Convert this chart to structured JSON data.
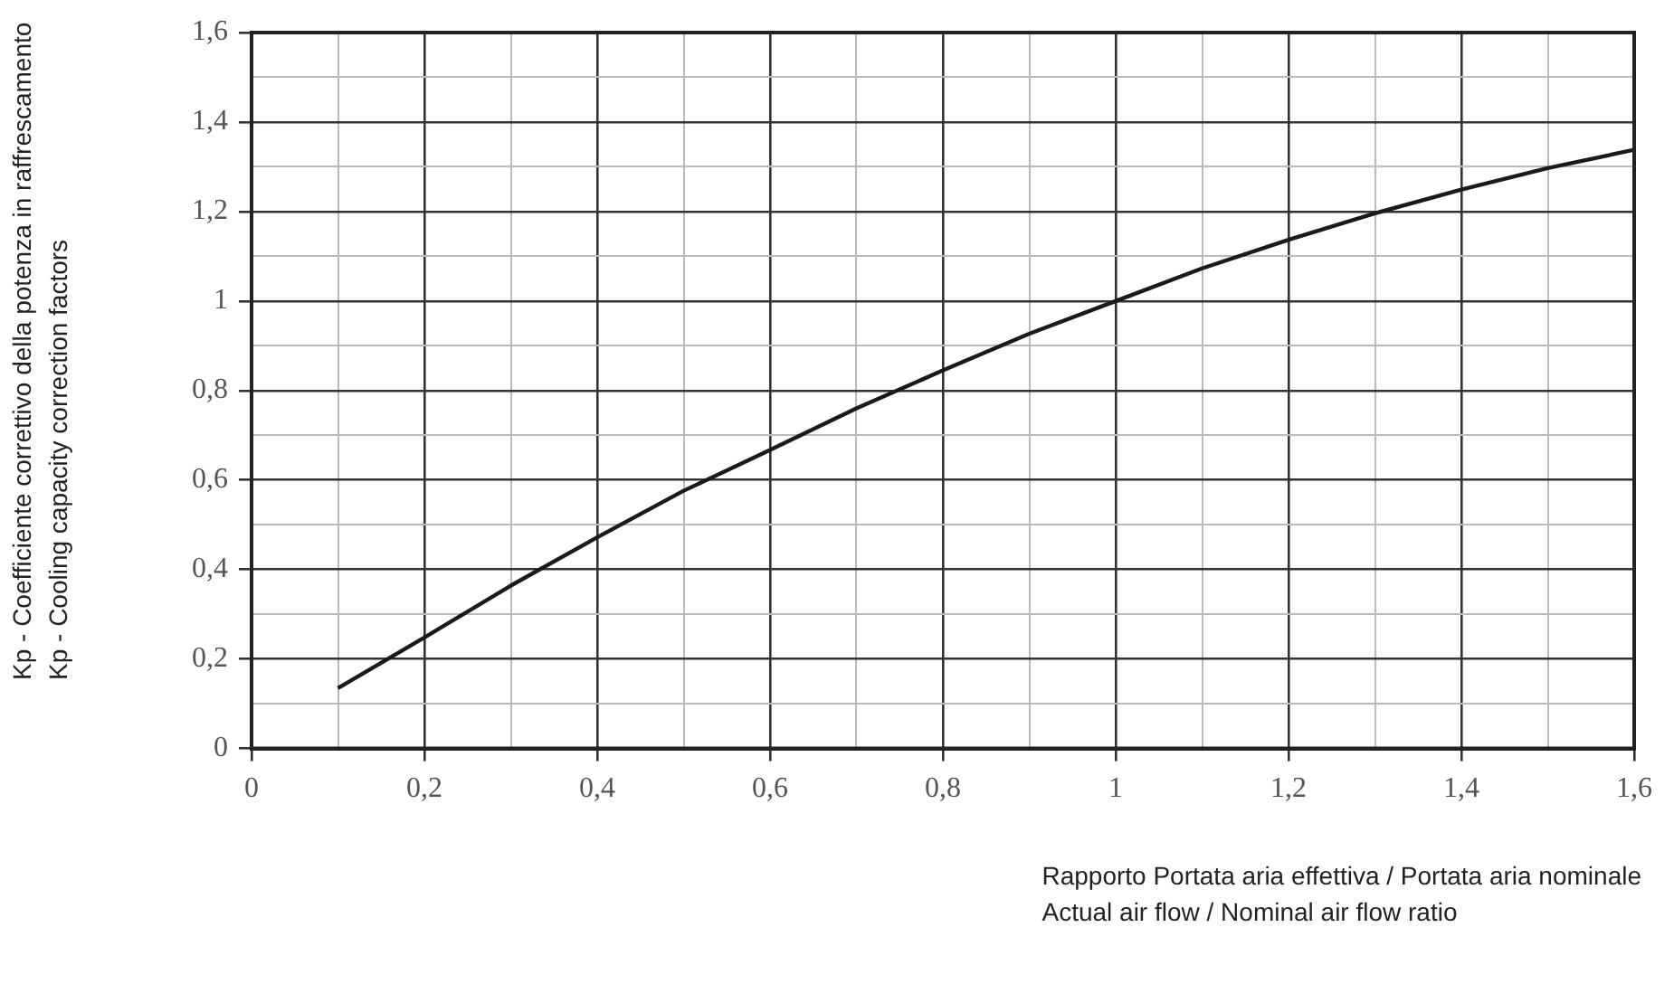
{
  "chart_data": {
    "type": "line",
    "xlabel": "Rapporto Portata aria effettiva / Portata aria nominale\nActual air flow / Nominal air flow ratio",
    "ylabel": "Kp - Coefficiente correttivo della potenza in raffrescamento\nKp - Cooling capacity correction factors",
    "x": [
      0.1,
      0.2,
      0.3,
      0.4,
      0.5,
      0.6,
      0.7,
      0.8,
      0.9,
      1.0,
      1.1,
      1.2,
      1.3,
      1.4,
      1.5,
      1.6
    ],
    "series": [
      {
        "color": "#1a1a1a",
        "values": [
          0.135,
          0.248,
          0.364,
          0.472,
          0.576,
          0.667,
          0.76,
          0.845,
          0.927,
          1.0,
          1.073,
          1.137,
          1.196,
          1.249,
          1.297,
          1.338
        ]
      }
    ],
    "xlim": [
      0,
      1.6
    ],
    "ylim": [
      0,
      1.6
    ],
    "xticks": [
      0,
      {
        "value": 0.1,
        "label": null
      },
      {
        "value": 0.2,
        "label": "0,2"
      },
      {
        "value": 0.3,
        "label": null
      },
      {
        "value": 0.4,
        "label": "0,4"
      },
      {
        "value": 0.5,
        "label": null
      },
      {
        "value": 0.6,
        "label": "0,6"
      },
      {
        "value": 0.7,
        "label": null
      },
      {
        "value": 0.8,
        "label": "0,8"
      },
      {
        "value": 0.9,
        "label": null
      },
      1,
      {
        "value": 1.1,
        "label": null
      },
      {
        "value": 1.2,
        "label": "1,2"
      },
      {
        "value": 1.3,
        "label": null
      },
      {
        "value": 1.4,
        "label": "1,4"
      },
      {
        "value": 1.5,
        "label": null
      },
      {
        "value": 1.6,
        "label": "1,6"
      }
    ],
    "yticks": [
      0,
      {
        "value": 0.1,
        "label": null
      },
      {
        "value": 0.2,
        "label": "0,2"
      },
      {
        "value": 0.3,
        "label": null
      },
      {
        "value": 0.4,
        "label": "0,4"
      },
      {
        "value": 0.5,
        "label": null
      },
      {
        "value": 0.6,
        "label": "0,6"
      },
      {
        "value": 0.7,
        "label": null
      },
      {
        "value": 0.8,
        "label": "0,8"
      },
      {
        "value": 0.9,
        "label": null
      },
      1,
      {
        "value": 1.1,
        "label": null
      },
      {
        "value": 1.2,
        "label": "1,2"
      },
      {
        "value": 1.3,
        "label": null
      },
      {
        "value": 1.4,
        "label": "1,4"
      },
      {
        "value": 1.5,
        "label": null
      },
      {
        "value": 1.6,
        "label": "1,6"
      }
    ],
    "grid": true,
    "legend": false,
    "marker": "none",
    "line_style": "solid"
  }
}
